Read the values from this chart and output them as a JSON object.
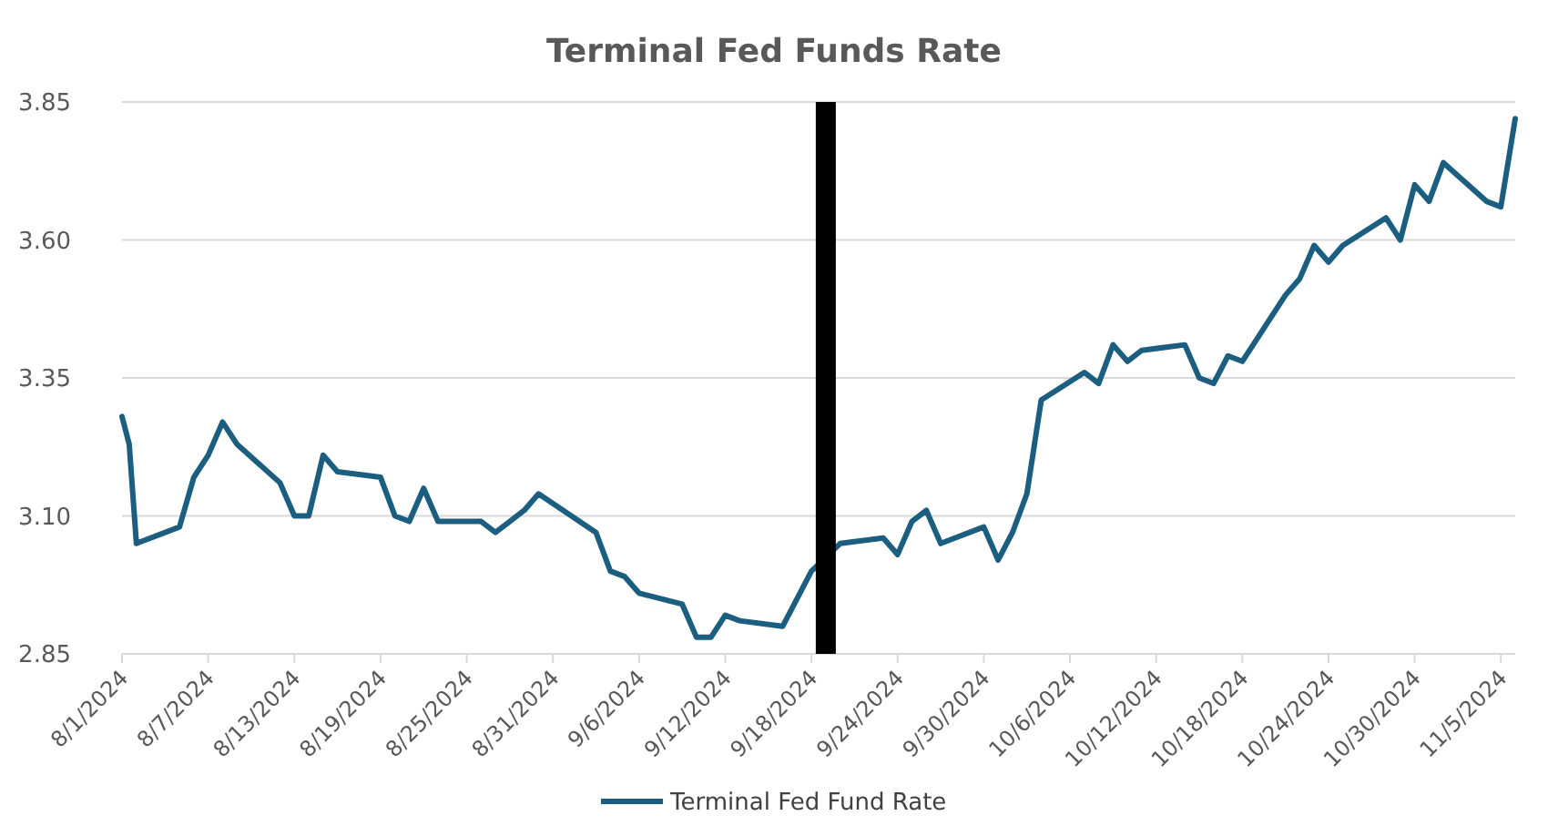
{
  "chart_data": {
    "type": "line",
    "title": "Terminal Fed Funds Rate",
    "x": [
      "2024-08-01",
      "2024-08-01T12:00",
      "2024-08-02",
      "2024-08-05",
      "2024-08-06",
      "2024-08-07",
      "2024-08-08",
      "2024-08-09",
      "2024-08-12",
      "2024-08-13",
      "2024-08-14",
      "2024-08-15",
      "2024-08-16",
      "2024-08-19",
      "2024-08-20",
      "2024-08-21",
      "2024-08-22",
      "2024-08-23",
      "2024-08-26",
      "2024-08-27",
      "2024-08-28",
      "2024-08-29",
      "2024-08-30",
      "2024-09-03",
      "2024-09-04",
      "2024-09-05",
      "2024-09-06",
      "2024-09-09",
      "2024-09-10",
      "2024-09-11",
      "2024-09-12",
      "2024-09-13",
      "2024-09-16",
      "2024-09-17",
      "2024-09-18",
      "2024-09-19",
      "2024-09-20",
      "2024-09-23",
      "2024-09-24",
      "2024-09-25",
      "2024-09-26",
      "2024-09-27",
      "2024-09-30",
      "2024-10-01",
      "2024-10-02",
      "2024-10-03",
      "2024-10-04",
      "2024-10-07",
      "2024-10-08",
      "2024-10-09",
      "2024-10-10",
      "2024-10-11",
      "2024-10-14",
      "2024-10-15",
      "2024-10-16",
      "2024-10-17",
      "2024-10-18",
      "2024-10-21",
      "2024-10-22",
      "2024-10-23",
      "2024-10-24",
      "2024-10-25",
      "2024-10-28",
      "2024-10-29",
      "2024-10-30",
      "2024-10-31",
      "2024-11-01",
      "2024-11-04",
      "2024-11-05",
      "2024-11-06"
    ],
    "series": [
      {
        "name": "Terminal Fed Fund Rate",
        "color": "#1b5e80",
        "values": [
          3.28,
          3.23,
          3.05,
          3.08,
          3.17,
          3.21,
          3.27,
          3.23,
          3.16,
          3.1,
          3.1,
          3.21,
          3.18,
          3.17,
          3.1,
          3.09,
          3.15,
          3.09,
          3.09,
          3.07,
          3.09,
          3.11,
          3.14,
          3.07,
          3.0,
          2.99,
          2.96,
          2.94,
          2.88,
          2.88,
          2.92,
          2.91,
          2.9,
          2.95,
          3.0,
          null,
          3.05,
          3.06,
          3.03,
          3.09,
          3.11,
          3.05,
          3.08,
          3.02,
          3.07,
          3.14,
          3.31,
          3.36,
          3.34,
          3.41,
          3.38,
          3.4,
          3.41,
          3.35,
          3.34,
          3.39,
          3.38,
          3.5,
          3.53,
          3.59,
          3.56,
          3.59,
          3.64,
          3.6,
          3.7,
          3.67,
          3.74,
          3.67,
          3.66,
          3.82
        ]
      }
    ],
    "xlim": [
      "2024-08-01",
      "2024-11-06"
    ],
    "xticks": [
      {
        "value": "2024-08-01",
        "label": "8/1/2024"
      },
      {
        "value": "2024-08-07",
        "label": "8/7/2024"
      },
      {
        "value": "2024-08-13",
        "label": "8/13/2024"
      },
      {
        "value": "2024-08-19",
        "label": "8/19/2024"
      },
      {
        "value": "2024-08-25",
        "label": "8/25/2024"
      },
      {
        "value": "2024-08-31",
        "label": "8/31/2024"
      },
      {
        "value": "2024-09-06",
        "label": "9/6/2024"
      },
      {
        "value": "2024-09-12",
        "label": "9/12/2024"
      },
      {
        "value": "2024-09-18",
        "label": "9/18/2024"
      },
      {
        "value": "2024-09-24",
        "label": "9/24/2024"
      },
      {
        "value": "2024-09-30",
        "label": "9/30/2024"
      },
      {
        "value": "2024-10-06",
        "label": "10/6/2024"
      },
      {
        "value": "2024-10-12",
        "label": "10/12/2024"
      },
      {
        "value": "2024-10-18",
        "label": "10/18/2024"
      },
      {
        "value": "2024-10-24",
        "label": "10/24/2024"
      },
      {
        "value": "2024-10-30",
        "label": "10/30/2024"
      },
      {
        "value": "2024-11-05",
        "label": "11/5/2024"
      }
    ],
    "ylim": [
      2.85,
      3.85
    ],
    "yticks": [
      {
        "value": 2.85,
        "label": "2.85"
      },
      {
        "value": 3.1,
        "label": "3.10"
      },
      {
        "value": 3.35,
        "label": "3.35"
      },
      {
        "value": 3.6,
        "label": "3.60"
      },
      {
        "value": 3.85,
        "label": "3.85"
      }
    ],
    "ref_lines": [
      {
        "axis": "x",
        "value": "2024-09-19",
        "color": "#000000"
      }
    ],
    "grid": "y",
    "legend": "bottom",
    "marker": "none",
    "line_style": "solid"
  }
}
